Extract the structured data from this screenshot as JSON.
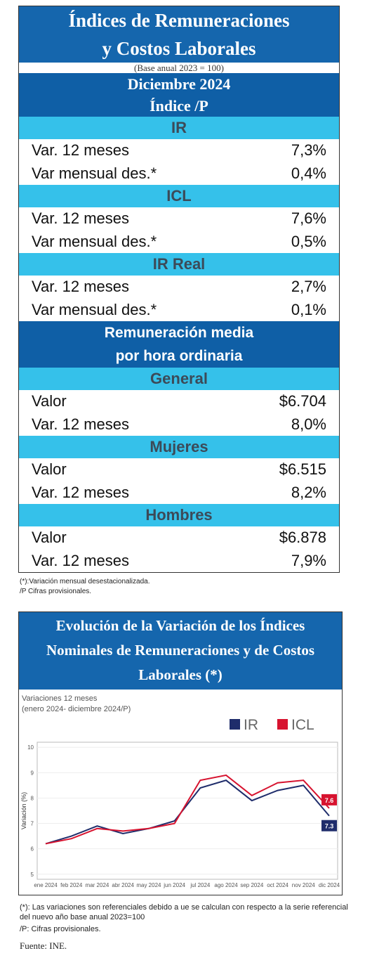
{
  "header": {
    "title_lines": [
      "Índices de Remuneraciones",
      "y Costos Laborales"
    ],
    "subtitle": "(Base anual 2023 = 100)"
  },
  "period": {
    "month": "Diciembre 2024",
    "label": "Índice /P"
  },
  "sections": [
    {
      "name": "IR",
      "rows": [
        [
          "Var. 12 meses",
          "7,3%"
        ],
        [
          "Var mensual des.*",
          "0,4%"
        ]
      ]
    },
    {
      "name": "ICL",
      "rows": [
        [
          "Var. 12 meses",
          "7,6%"
        ],
        [
          "Var mensual des.*",
          "0,5%"
        ]
      ]
    },
    {
      "name": "IR Real",
      "rows": [
        [
          "Var. 12 meses",
          "2,7%"
        ],
        [
          "Var mensual des.*",
          "0,1%"
        ]
      ]
    }
  ],
  "remuneration": {
    "title_lines": [
      "Remuneración media",
      "por hora ordinaria"
    ],
    "groups": [
      {
        "name": "General",
        "rows": [
          [
            "Valor",
            "$6.704"
          ],
          [
            "Var. 12 meses",
            "8,0%"
          ]
        ]
      },
      {
        "name": "Mujeres",
        "rows": [
          [
            "Valor",
            "$6.515"
          ],
          [
            "Var. 12 meses",
            "8,2%"
          ]
        ]
      },
      {
        "name": "Hombres",
        "rows": [
          [
            "Valor",
            "$6.878"
          ],
          [
            "Var. 12 meses",
            "7,9%"
          ]
        ]
      }
    ]
  },
  "notes": [
    "(*):Variación mensual desestacionalizada.",
    "/P Cifras provisionales."
  ],
  "chart_data": {
    "type": "line",
    "title_lines": [
      "Evolución de la Variación de los Índices",
      "Nominales de Remuneraciones y de Costos",
      "Laborales (*)"
    ],
    "subtitle_lines": [
      "Variaciones 12 meses",
      "(enero 2024- diciembre 2024/P)"
    ],
    "y_label": "Variación (%)",
    "categories": [
      "ene 2024",
      "feb 2024",
      "mar 2024",
      "abr 2024",
      "may 2024",
      "jun 2024",
      "jul 2024",
      "ago 2024",
      "sep 2024",
      "oct 2024",
      "nov 2024",
      "dic 2024"
    ],
    "series": [
      {
        "name": "IR",
        "color": "#1f2d6b",
        "values": [
          6.2,
          6.5,
          6.9,
          6.6,
          6.8,
          7.1,
          8.4,
          8.7,
          7.9,
          8.3,
          8.5,
          7.3
        ]
      },
      {
        "name": "ICL",
        "color": "#d7132f",
        "values": [
          6.2,
          6.4,
          6.8,
          6.7,
          6.8,
          7.0,
          8.7,
          8.9,
          8.1,
          8.6,
          8.7,
          7.6
        ]
      }
    ],
    "ylim": [
      4.8,
      10.2
    ],
    "yticks": [
      5,
      6,
      7,
      8,
      9,
      10
    ],
    "grid": true,
    "legend": "top-right"
  },
  "chart_notes": [
    "(*): Las variaciones son referenciales debido a ue se calculan con respecto a la serie referencial del nuevo año base anual 2023=100",
    "/P: Cifras provisionales."
  ],
  "source": "Fuente: INE."
}
